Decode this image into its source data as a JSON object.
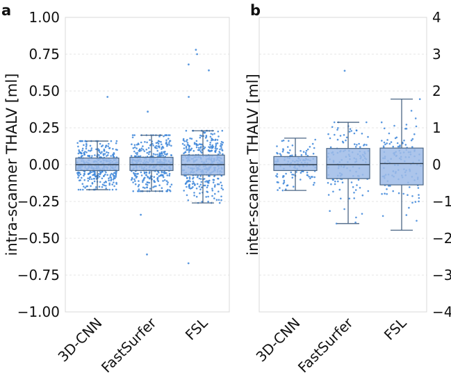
{
  "chart_data": [
    {
      "type": "box",
      "panel": "a",
      "ylabel": "intra-scanner THALV [ml]",
      "ylim": [
        -1.0,
        1.0
      ],
      "yticks": [
        "1.00",
        "0.75",
        "0.50",
        "0.25",
        "0.00",
        "−0.25",
        "−0.50",
        "−0.75",
        "−1.00"
      ],
      "ytick_values": [
        1.0,
        0.75,
        0.5,
        0.25,
        0.0,
        -0.25,
        -0.5,
        -0.75,
        -1.0
      ],
      "categories": [
        "3D-CNN",
        "FastSurfer",
        "FSL"
      ],
      "boxes": [
        {
          "whisker_low": -0.17,
          "q1": -0.04,
          "median": 0.0,
          "q3": 0.045,
          "whisker_high": 0.16,
          "outliers": [
            0.46
          ],
          "n_points": 380,
          "spread": 0.085
        },
        {
          "whisker_low": -0.18,
          "q1": -0.04,
          "median": 0.0,
          "q3": 0.05,
          "whisker_high": 0.2,
          "outliers": [
            0.36,
            -0.34,
            -0.61
          ],
          "n_points": 380,
          "spread": 0.1
        },
        {
          "whisker_low": -0.26,
          "q1": -0.07,
          "median": 0.0,
          "q3": 0.065,
          "whisker_high": 0.23,
          "outliers": [
            0.78,
            0.75,
            0.64,
            0.68,
            0.46,
            -0.67
          ],
          "n_points": 420,
          "spread": 0.12
        }
      ]
    },
    {
      "type": "box",
      "panel": "b",
      "ylabel": "inter-scanner THALV [ml]",
      "ylim": [
        -4,
        4
      ],
      "yticks": [
        "4",
        "3",
        "2",
        "1",
        "0",
        "−1",
        "−2",
        "−3",
        "−4"
      ],
      "ytick_values": [
        4,
        3,
        2,
        1,
        0,
        -1,
        -2,
        -3,
        -4
      ],
      "categories": [
        "3D-CNN",
        "FastSurfer",
        "FSL"
      ],
      "boxes": [
        {
          "whisker_low": -0.7,
          "q1": -0.16,
          "median": 0.0,
          "q3": 0.22,
          "whisker_high": 0.72,
          "outliers": [],
          "n_points": 130,
          "spread": 0.3
        },
        {
          "whisker_low": -1.6,
          "q1": -0.38,
          "median": 0.0,
          "q3": 0.44,
          "whisker_high": 1.15,
          "outliers": [
            2.55
          ],
          "n_points": 130,
          "spread": 0.6
        },
        {
          "whisker_low": -1.78,
          "q1": -0.55,
          "median": 0.03,
          "q3": 0.45,
          "whisker_high": 1.78,
          "outliers": [],
          "n_points": 130,
          "spread": 0.65
        }
      ]
    }
  ]
}
